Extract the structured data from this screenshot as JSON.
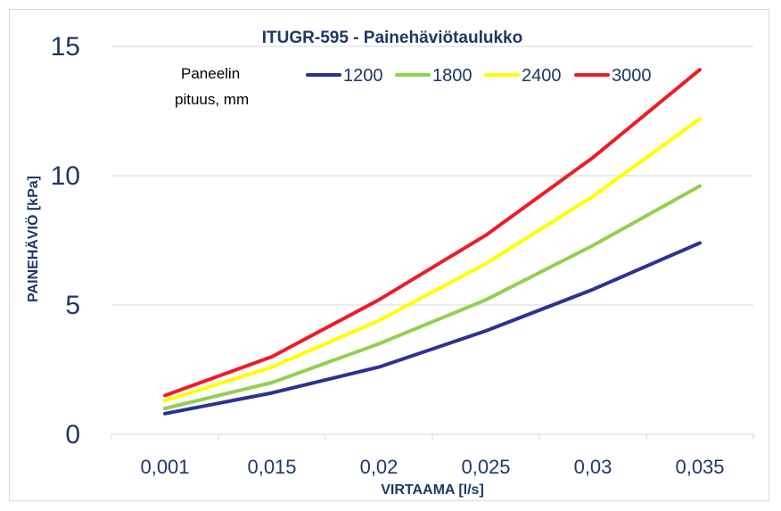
{
  "chart_data": {
    "type": "line",
    "title": "ITUGR-595 -  Painehäviötaulukko",
    "xlabel": "VIRTAAMA [l/s]",
    "ylabel": "PAINEHÄVIÖ [kPa]",
    "categories": [
      "0,001",
      "0,015",
      "0,02",
      "0,025",
      "0,03",
      "0,035"
    ],
    "ylim": [
      0,
      15
    ],
    "yticks": [
      "0",
      "5",
      "10",
      "15"
    ],
    "grid": "horizontal",
    "legend_position": "top",
    "legend_title": [
      "Paneelin",
      "pituus, mm"
    ],
    "series": [
      {
        "name": "1200",
        "color": "#2e3192",
        "values": [
          0.8,
          1.6,
          2.6,
          4.0,
          5.6,
          7.4
        ]
      },
      {
        "name": "1800",
        "color": "#92d050",
        "values": [
          1.0,
          2.0,
          3.5,
          5.2,
          7.3,
          9.6
        ]
      },
      {
        "name": "2400",
        "color": "#ffff00",
        "values": [
          1.3,
          2.6,
          4.4,
          6.6,
          9.2,
          12.2
        ]
      },
      {
        "name": "3000",
        "color": "#ee1c25",
        "values": [
          1.5,
          3.0,
          5.2,
          7.7,
          10.7,
          14.1
        ]
      }
    ]
  }
}
